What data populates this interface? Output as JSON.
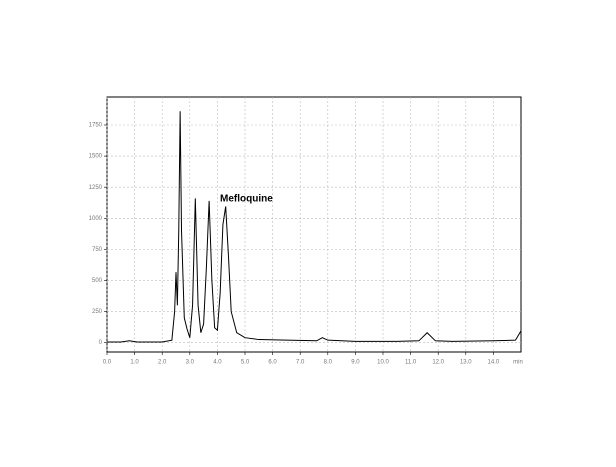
{
  "chart_data": {
    "type": "line",
    "annotation": "Mefloquine",
    "x_label": "min",
    "x": [
      0,
      0.5,
      0.8,
      1.1,
      2.0,
      2.35,
      2.45,
      2.5,
      2.55,
      2.6,
      2.65,
      2.7,
      2.8,
      2.9,
      3.0,
      3.1,
      3.2,
      3.3,
      3.4,
      3.5,
      3.6,
      3.7,
      3.8,
      3.9,
      4.0,
      4.1,
      4.2,
      4.3,
      4.4,
      4.5,
      4.7,
      5.0,
      5.5,
      6.5,
      7.6,
      7.8,
      8.0,
      9.0,
      10.5,
      11.3,
      11.6,
      11.9,
      12.5,
      14.0,
      14.8,
      15.0
    ],
    "series": [
      {
        "color": "#000000",
        "values": [
          5,
          5,
          15,
          5,
          5,
          20,
          250,
          567,
          300,
          900,
          1860,
          900,
          200,
          110,
          40,
          300,
          1160,
          300,
          80,
          150,
          600,
          1140,
          500,
          120,
          100,
          400,
          950,
          1095,
          700,
          250,
          80,
          40,
          25,
          20,
          15,
          40,
          20,
          10,
          10,
          15,
          80,
          15,
          10,
          15,
          20,
          95
        ]
      }
    ],
    "xlim": [
      0,
      15
    ],
    "ylim": [
      -75,
      1975
    ],
    "xticks": [
      {
        "value": 0,
        "label": "0.0"
      },
      {
        "value": 1,
        "label": "1.0"
      },
      {
        "value": 2,
        "label": "2.0"
      },
      {
        "value": 3,
        "label": "3.0"
      },
      {
        "value": 4,
        "label": "4.0"
      },
      {
        "value": 5,
        "label": "5.0"
      },
      {
        "value": 6,
        "label": "6.0"
      },
      {
        "value": 7,
        "label": "7.0"
      },
      {
        "value": 8,
        "label": "8.0"
      },
      {
        "value": 9,
        "label": "9.0"
      },
      {
        "value": 10,
        "label": "10.0"
      },
      {
        "value": 11,
        "label": "11.0"
      },
      {
        "value": 12,
        "label": "12.0"
      },
      {
        "value": 13,
        "label": "13.0"
      },
      {
        "value": 14,
        "label": "14.0"
      }
    ],
    "yticks": [
      0,
      250,
      500,
      750,
      1000,
      1250,
      1500,
      1750
    ],
    "grid": true
  }
}
